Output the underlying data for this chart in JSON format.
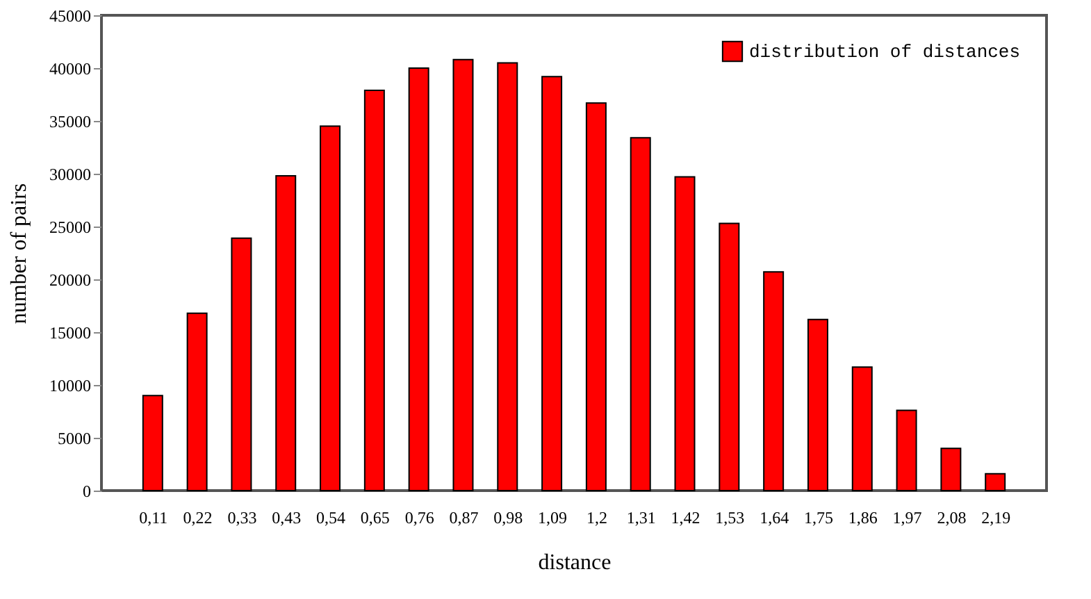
{
  "chart_data": {
    "type": "bar",
    "xlabel": "distance",
    "ylabel": "number of pairs",
    "categories": [
      "0,11",
      "0,22",
      "0,33",
      "0,43",
      "0,54",
      "0,65",
      "0,76",
      "0,87",
      "0,98",
      "1,09",
      "1,2",
      "1,31",
      "1,42",
      "1,53",
      "1,64",
      "1,75",
      "1,86",
      "1,97",
      "2,08",
      "2,19"
    ],
    "series": [
      {
        "name": "distribution of distances",
        "color": "#ff0000",
        "values": [
          9000,
          16800,
          23900,
          29800,
          34500,
          37900,
          40000,
          40800,
          40500,
          39200,
          36700,
          33400,
          29700,
          25300,
          20700,
          16200,
          11700,
          7600,
          4000,
          1600
        ]
      }
    ],
    "ylim": [
      0,
      45000
    ],
    "yticks": [
      0,
      5000,
      10000,
      15000,
      20000,
      25000,
      30000,
      35000,
      40000,
      45000
    ],
    "grid": false,
    "legend": "top right"
  }
}
